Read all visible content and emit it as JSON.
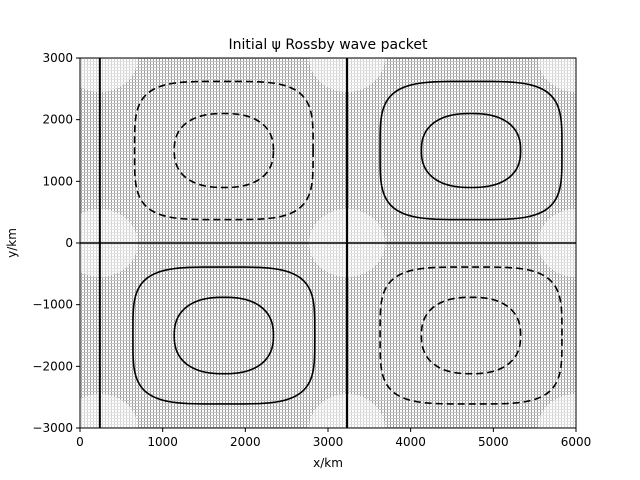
{
  "chart_data": {
    "type": "contour",
    "title": "Initial ψ Rossby wave packet",
    "xlabel": "x/km",
    "ylabel": "y/km",
    "xlim": [
      0,
      6000
    ],
    "ylim": [
      -3000,
      3000
    ],
    "xticks": [
      0,
      1000,
      2000,
      3000,
      4000,
      5000,
      6000
    ],
    "yticks": [
      -3000,
      -2000,
      -1000,
      0,
      1000,
      2000,
      3000
    ],
    "grid": false,
    "background": "dense quiver-style hatch field with lighter patches",
    "reference_lines": {
      "horizontal_y": [
        0
      ],
      "vertical_x": [
        240,
        3230
      ]
    },
    "cells": [
      {
        "name": "upper-left",
        "center": [
          1740,
          1500
        ],
        "inner_half_width": [
          600,
          600
        ],
        "outer_half_width": [
          1080,
          1120
        ],
        "sign": "negative",
        "linestyle": "dashed"
      },
      {
        "name": "upper-right",
        "center": [
          4730,
          1500
        ],
        "inner_half_width": [
          600,
          600
        ],
        "outer_half_width": [
          1100,
          1120
        ],
        "sign": "positive",
        "linestyle": "solid"
      },
      {
        "name": "lower-left",
        "center": [
          1740,
          -1500
        ],
        "inner_half_width": [
          600,
          620
        ],
        "outer_half_width": [
          1100,
          1110
        ],
        "sign": "positive",
        "linestyle": "solid"
      },
      {
        "name": "lower-right",
        "center": [
          4730,
          -1500
        ],
        "inner_half_width": [
          600,
          620
        ],
        "outer_half_width": [
          1100,
          1110
        ],
        "sign": "negative",
        "linestyle": "dashed"
      }
    ]
  }
}
